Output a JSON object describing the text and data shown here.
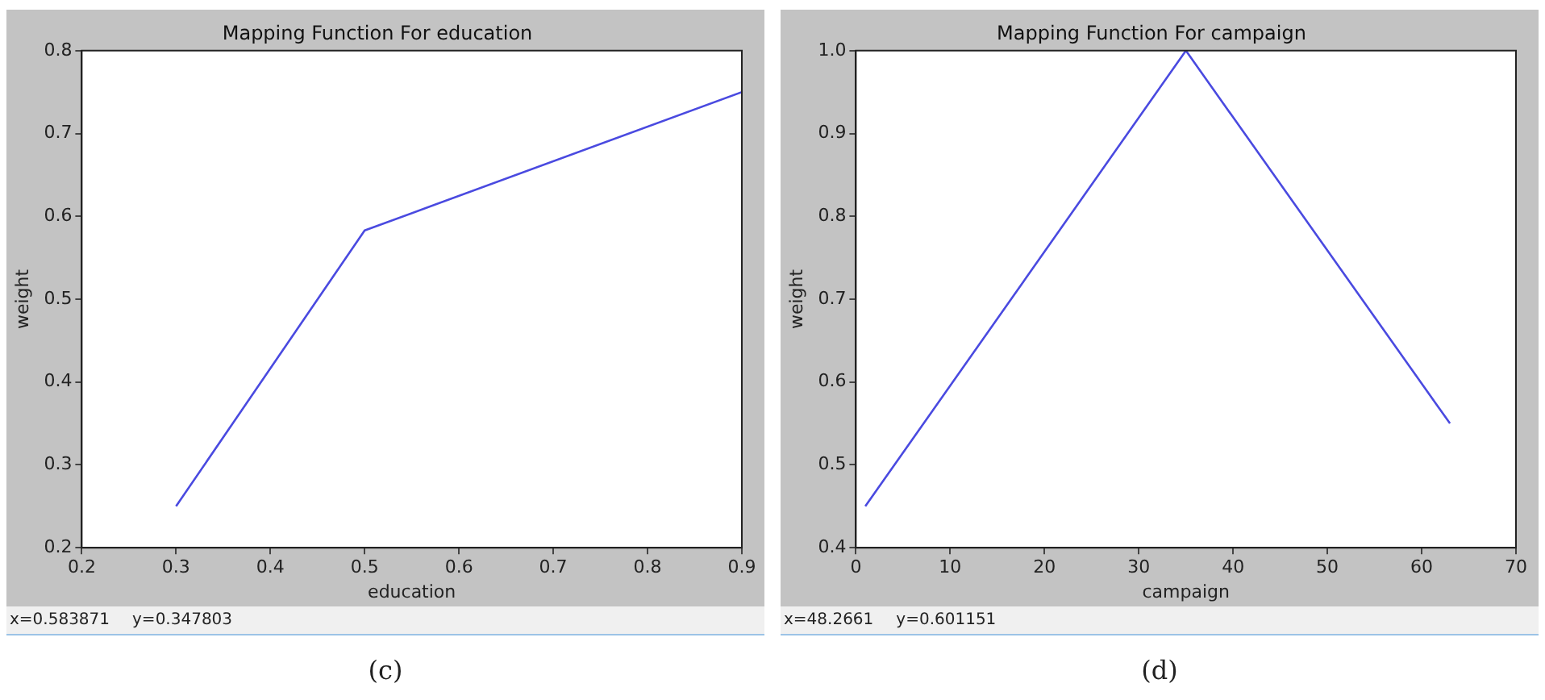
{
  "chart_data": [
    {
      "type": "line",
      "title": "Mapping Function For education",
      "xlabel": "education",
      "ylabel": "weight",
      "x": [
        0.3,
        0.5,
        0.9
      ],
      "series": [
        {
          "color": "#4a4ae0",
          "values": [
            0.25,
            0.583,
            0.75
          ]
        }
      ],
      "xlim": [
        0.2,
        0.9
      ],
      "xticks": [
        0.2,
        0.3,
        0.4,
        0.5,
        0.6,
        0.7,
        0.8,
        0.9
      ],
      "ylim": [
        0.2,
        0.8
      ],
      "yticks": [
        0.2,
        0.3,
        0.4,
        0.5,
        0.6,
        0.7,
        0.8
      ],
      "grid": false,
      "legend": false,
      "marker": "none",
      "line_style": "solid",
      "annotations": [
        "x=0.583871",
        "y=0.347803",
        "(c)"
      ]
    },
    {
      "type": "line",
      "title": "Mapping Function For campaign",
      "xlabel": "campaign",
      "ylabel": "weight",
      "x": [
        1,
        35,
        63
      ],
      "series": [
        {
          "color": "#4a4ae0",
          "values": [
            0.45,
            1.0,
            0.55
          ]
        }
      ],
      "xlim": [
        0,
        70
      ],
      "xticks": [
        0,
        10,
        20,
        30,
        40,
        50,
        60,
        70
      ],
      "ylim": [
        0.4,
        1.0
      ],
      "yticks": [
        0.4,
        0.5,
        0.6,
        0.7,
        0.8,
        0.9,
        {
          "value": 1,
          "label": "1.0"
        }
      ],
      "grid": false,
      "legend": false,
      "marker": "none",
      "line_style": "solid",
      "annotations": [
        "x=48.2661",
        "y=0.601151",
        "(d)"
      ]
    }
  ]
}
